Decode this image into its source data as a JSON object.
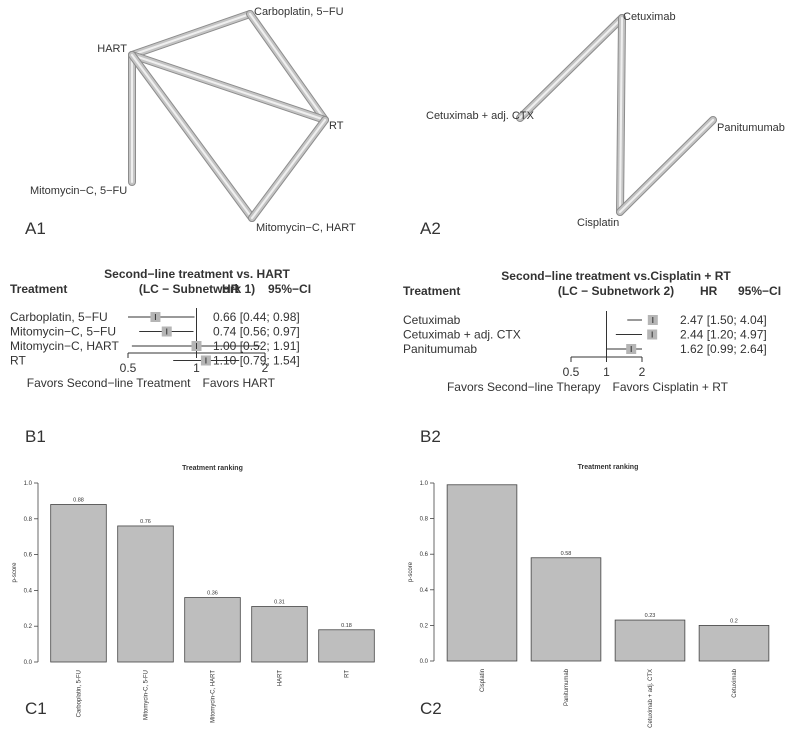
{
  "panels": {
    "a1": "A1",
    "a2": "A2",
    "b1": "B1",
    "b2": "B2",
    "c1": "C1",
    "c2": "C2"
  },
  "chart_data": [
    {
      "panel": "A1",
      "type": "network",
      "nodes": [
        "HART",
        "Carboplatin, 5−FU",
        "RT",
        "Mitomycin−C, 5−FU",
        "Mitomycin−C, HART"
      ],
      "edges": [
        {
          "from": "HART",
          "to": "Carboplatin, 5−FU"
        },
        {
          "from": "Carboplatin, 5−FU",
          "to": "RT"
        },
        {
          "from": "HART",
          "to": "RT"
        },
        {
          "from": "HART",
          "to": "Mitomycin−C, 5−FU"
        },
        {
          "from": "HART",
          "to": "Mitomycin−C, HART"
        },
        {
          "from": "RT",
          "to": "Mitomycin−C, HART"
        }
      ]
    },
    {
      "panel": "A2",
      "type": "network",
      "nodes": [
        "Cetuximab",
        "Cetuximab + adj. CTX",
        "Panitumumab",
        "Cisplatin"
      ],
      "edges": [
        {
          "from": "Cetuximab + adj. CTX",
          "to": "Cetuximab"
        },
        {
          "from": "Cetuximab",
          "to": "Cisplatin"
        },
        {
          "from": "Cisplatin",
          "to": "Panitumumab"
        }
      ]
    },
    {
      "panel": "B1",
      "type": "forest",
      "title": "Second−line treatment vs. HART",
      "subtitle": "(LC − Subnetwork 1)",
      "col_treatment": "Treatment",
      "col_hr": "HR",
      "col_ci": "95%−CI",
      "rows": [
        {
          "label": "Carboplatin, 5−FU",
          "hr": 0.66,
          "lo": 0.44,
          "hi": 0.98,
          "text": "0.66 [0.44; 0.98]"
        },
        {
          "label": "Mitomycin−C, 5−FU",
          "hr": 0.74,
          "lo": 0.56,
          "hi": 0.97,
          "text": "0.74 [0.56; 0.97]"
        },
        {
          "label": "Mitomycin−C, HART",
          "hr": 1.0,
          "lo": 0.52,
          "hi": 1.91,
          "text": "1.00 [0.52; 1.91]"
        },
        {
          "label": "RT",
          "hr": 1.1,
          "lo": 0.79,
          "hi": 1.54,
          "text": "1.10 [0.79; 1.54]"
        }
      ],
      "ticks": [
        0.5,
        1,
        2
      ],
      "tick_labels": [
        "0.5",
        "1",
        "2"
      ],
      "favors_left": "Favors Second−line Treatment",
      "favors_right": "Favors HART"
    },
    {
      "panel": "B2",
      "type": "forest",
      "title": "Second−line treatment vs.Cisplatin + RT",
      "subtitle": "(LC − Subnetwork 2)",
      "col_treatment": "Treatment",
      "col_hr": "HR",
      "col_ci": "95%−CI",
      "rows": [
        {
          "label": "Cetuximab",
          "hr": 2.47,
          "lo": 1.5,
          "hi": 4.04,
          "text": "2.47 [1.50; 4.04]"
        },
        {
          "label": "Cetuximab + adj. CTX",
          "hr": 2.44,
          "lo": 1.2,
          "hi": 4.97,
          "text": "2.44 [1.20; 4.97]"
        },
        {
          "label": "Panitumumab",
          "hr": 1.62,
          "lo": 0.99,
          "hi": 2.64,
          "text": "1.62 [0.99; 2.64]"
        }
      ],
      "ticks": [
        0.5,
        1,
        2
      ],
      "tick_labels": [
        "0.5",
        "1",
        "2"
      ],
      "favors_left": "Favors Second−line Therapy",
      "favors_right": "Favors Cisplatin + RT"
    },
    {
      "panel": "C1",
      "type": "bar",
      "title": "Treatment ranking",
      "ylabel": "p-score",
      "ylim": [
        0,
        1
      ],
      "yticks": [
        "0.0",
        "0.2",
        "0.4",
        "0.6",
        "0.8",
        "1.0"
      ],
      "categories": [
        "Carboplatin, 5-FU",
        "Mitomycin-C, 5-FU",
        "Mitomycin-C, HART",
        "HART",
        "RT"
      ],
      "values": [
        0.88,
        0.76,
        0.36,
        0.31,
        0.18
      ],
      "labels": [
        "0.88",
        "0.76",
        "0.36",
        "0.31",
        "0.18"
      ]
    },
    {
      "panel": "C2",
      "type": "bar",
      "title": "Treatment ranking",
      "ylabel": "p-score",
      "ylim": [
        0,
        1
      ],
      "yticks": [
        "0.0",
        "0.2",
        "0.4",
        "0.6",
        "0.8",
        "1.0"
      ],
      "categories": [
        "Cisplatin",
        "Panitumumab",
        "Cetuximab + adj. CTX",
        "Cetuximab"
      ],
      "values": [
        0.99,
        0.58,
        0.23,
        0.2
      ],
      "labels": [
        "",
        "0.58",
        "0.23",
        "0.2"
      ]
    }
  ]
}
